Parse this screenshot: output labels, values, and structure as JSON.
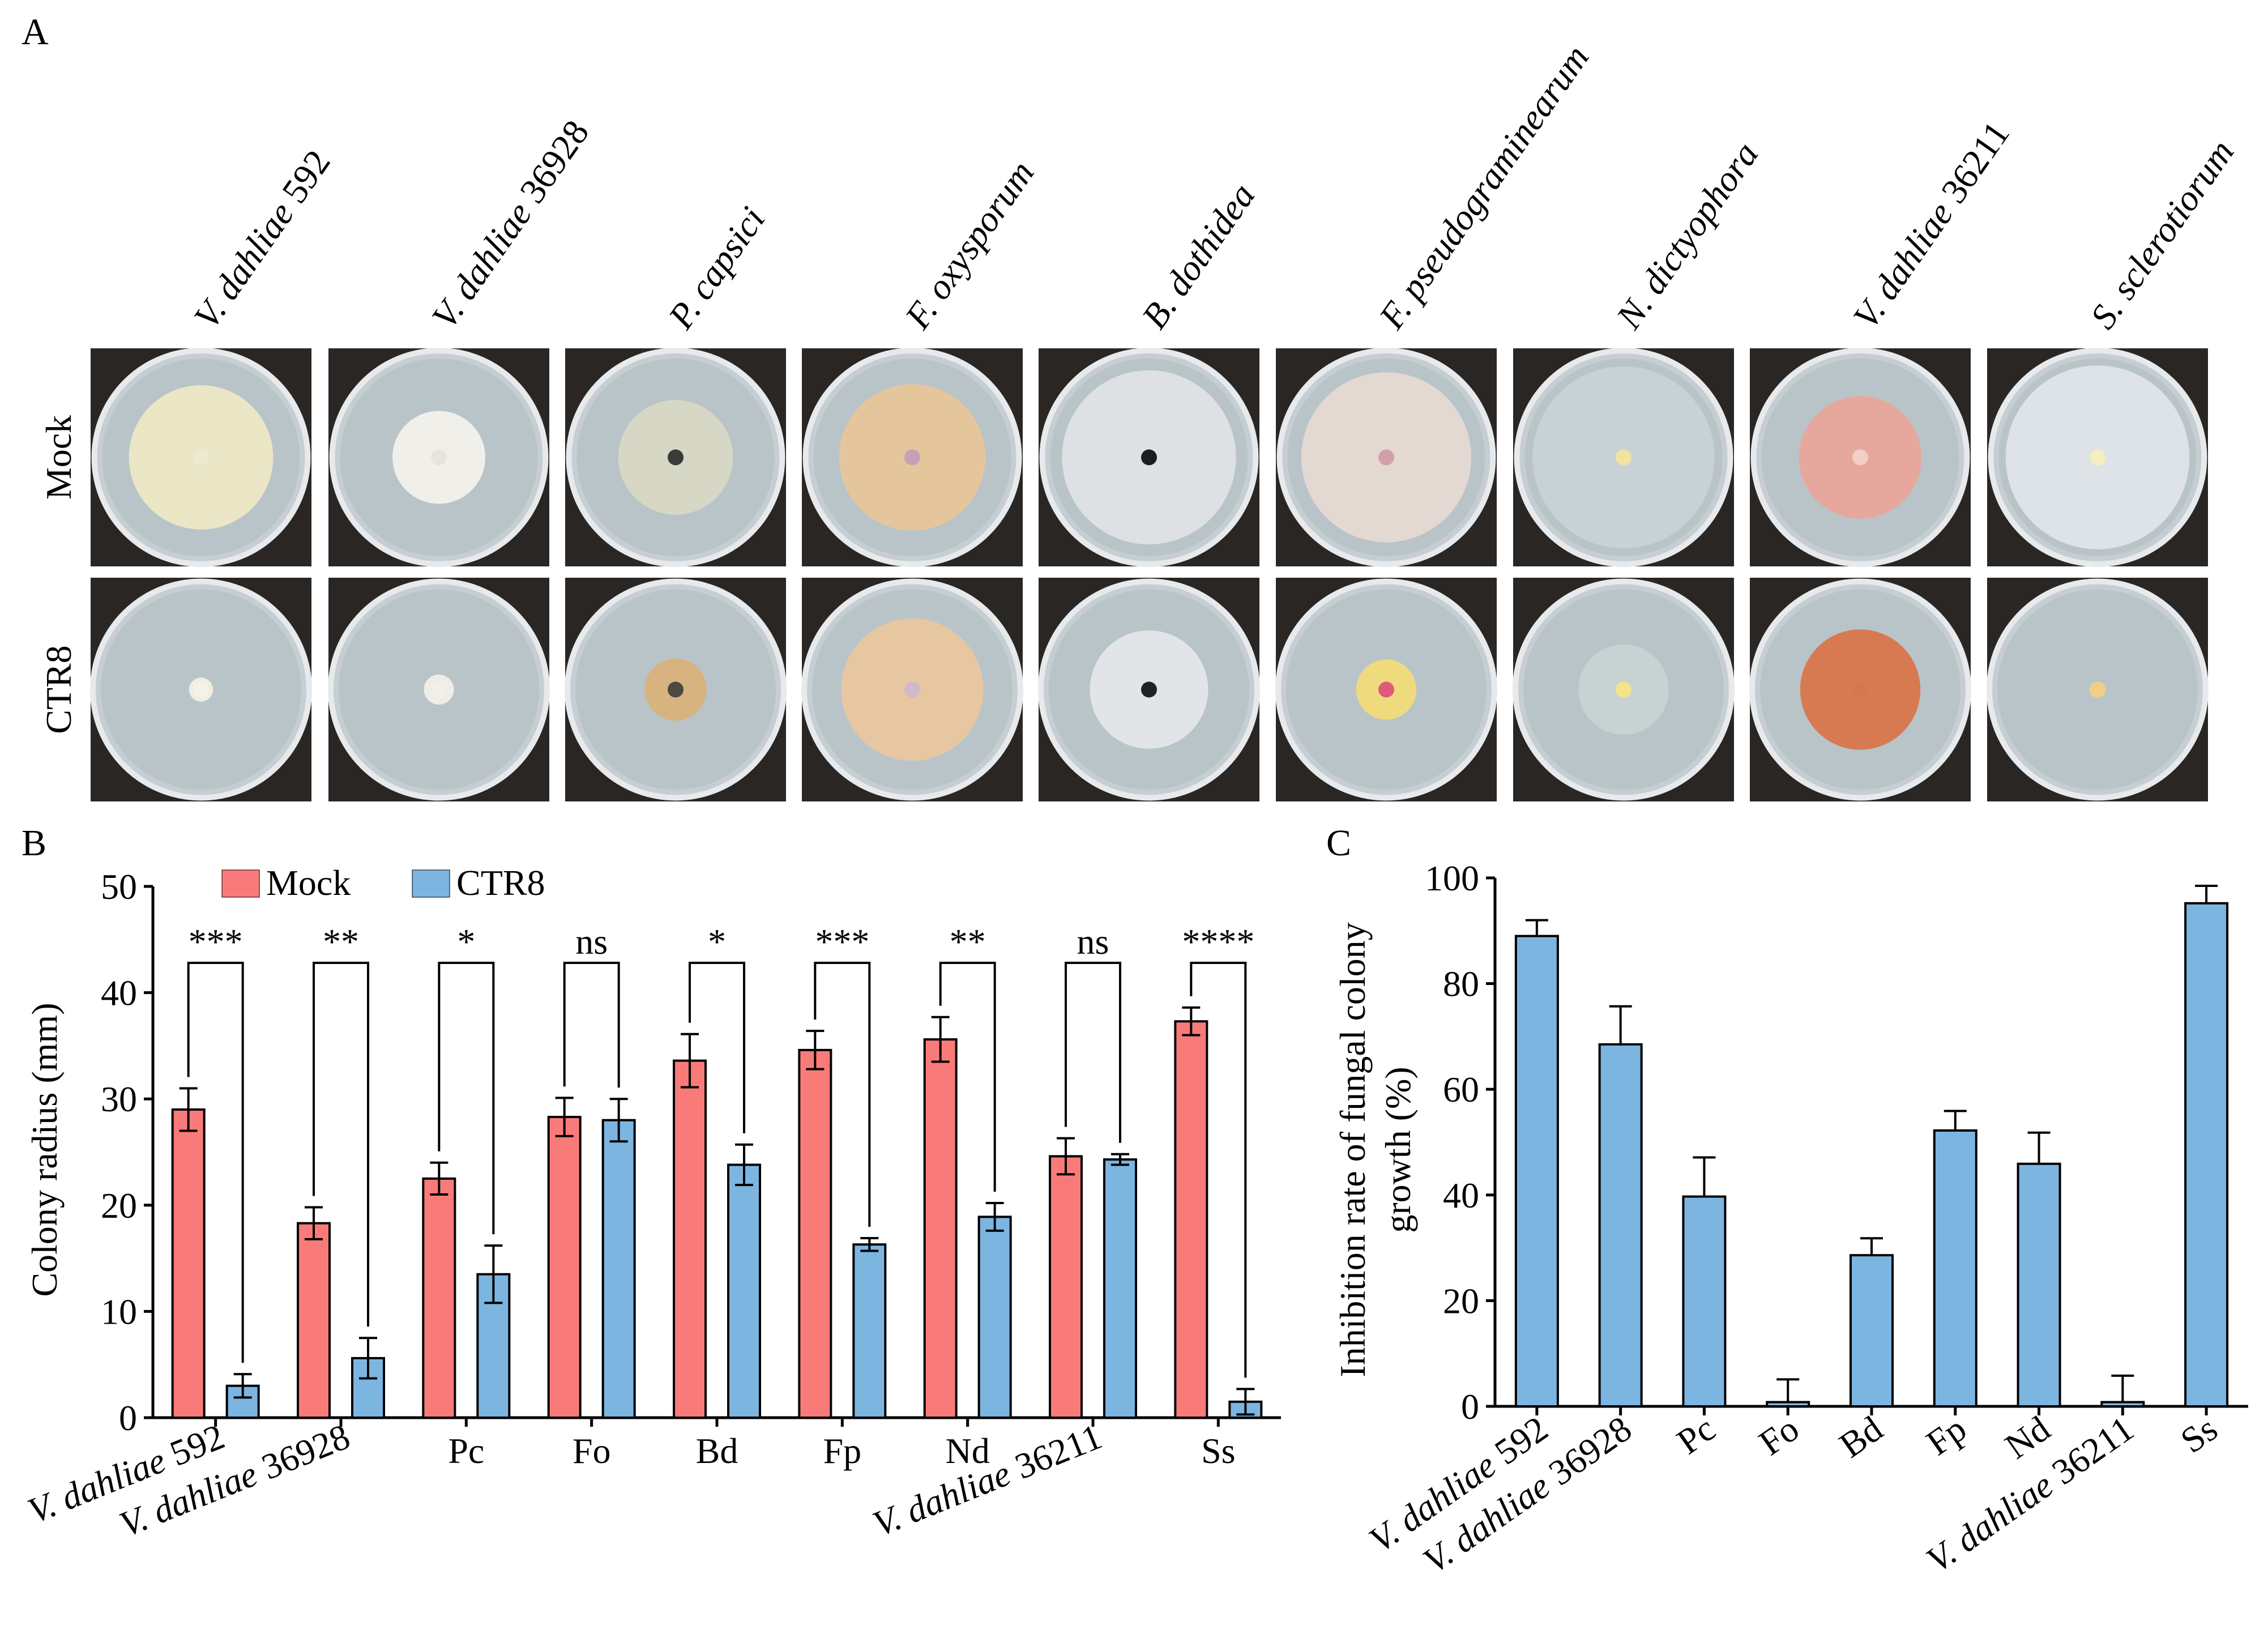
{
  "panel_labels": {
    "a": "A",
    "b": "B",
    "c": "C"
  },
  "photo_panel": {
    "columns": [
      {
        "italic": "V. dahliae",
        "roman": " 592"
      },
      {
        "italic": "V. dahliae",
        "roman": " 36928"
      },
      {
        "italic": "P. capsici",
        "roman": ""
      },
      {
        "italic": "F. oxysporum",
        "roman": ""
      },
      {
        "italic": "B. dothidea",
        "roman": ""
      },
      {
        "italic": "F. pseudograminearum",
        "roman": ""
      },
      {
        "italic": "N. dictyophora",
        "roman": ""
      },
      {
        "italic": "V. dahliae",
        "roman": " 36211"
      },
      {
        "italic": "S. sclerotiorum",
        "roman": ""
      }
    ],
    "rows": [
      "Mock",
      "CTR8"
    ],
    "colony_colors": {
      "Mock": [
        "#ece7c6",
        "#f2f0ea",
        "#d8d7c6",
        "#e7c69a",
        "#dfe2e4",
        "#e6d8d2",
        "#c9d2d6",
        "#e8a79a",
        "#dfe4e8"
      ],
      "CTR8": [
        "#f3efe3",
        "#f1eee8",
        "#d9b27c",
        "#e8c7a0",
        "#e3e6e8",
        "#f1dc7a",
        "#c8d2d2",
        "#d9774c",
        "#f2e4b4"
      ]
    },
    "colony_fraction": {
      "Mock": [
        0.73,
        0.47,
        0.58,
        0.74,
        0.88,
        0.86,
        0.92,
        0.62,
        0.93
      ],
      "CTR8": [
        0.12,
        0.15,
        0.31,
        0.71,
        0.59,
        0.3,
        0.45,
        0.6,
        0.08
      ]
    },
    "center_colors": {
      "Mock": [
        "#ecebd0",
        "#e8e4dc",
        "#3a3a38",
        "#c9a0b8",
        "#1e1e1e",
        "#d4a0a8",
        "#f3e3a0",
        "#f2d0c8",
        "#f5eec2"
      ],
      "CTR8": [
        "#f6f2e6",
        "#f3efe7",
        "#4a4a40",
        "#d2b8cc",
        "#222222",
        "#e05a7a",
        "#f5e38a",
        "#d9774c",
        "#f0cf82"
      ]
    }
  },
  "chart_b": {
    "ylabel": "Colony radius (mm)",
    "legend": [
      "Mock",
      "CTR8"
    ],
    "colors": {
      "Mock": "#f87b7a",
      "CTR8": "#7db5e1"
    }
  },
  "chart_c": {
    "ylabel_line1": "Inhibition rate of  fungal colony",
    "ylabel_line2": "growth (%)",
    "color": "#7db5e1"
  },
  "chart_data": [
    {
      "type": "bar",
      "categories": [
        "V. dahliae 592",
        "V. dahliae 36928",
        "Pc",
        "Fo",
        "Bd",
        "Fp",
        "Nd",
        "V. dahliae 36211",
        "Ss"
      ],
      "series": [
        {
          "name": "Mock",
          "values": [
            29.0,
            18.3,
            22.5,
            28.3,
            33.6,
            34.6,
            35.6,
            24.6,
            37.3
          ],
          "errors": [
            2.0,
            1.5,
            1.5,
            1.8,
            2.5,
            1.8,
            2.1,
            1.7,
            1.3
          ]
        },
        {
          "name": "CTR8",
          "values": [
            3.0,
            5.6,
            13.5,
            28.0,
            23.8,
            16.3,
            18.9,
            24.3,
            1.5
          ],
          "errors": [
            1.1,
            1.9,
            2.7,
            2.0,
            1.9,
            0.6,
            1.3,
            0.5,
            1.2
          ]
        }
      ],
      "significance": [
        "***",
        "**",
        "*",
        "ns",
        "*",
        "***",
        "**",
        "ns",
        "****"
      ],
      "ylabel": "Colony radius (mm)",
      "xlabel": "",
      "ylim": [
        0,
        50
      ],
      "yticks": [
        0,
        10,
        20,
        30,
        40,
        50
      ],
      "legend_position": "top-left",
      "grid": false
    },
    {
      "type": "bar",
      "categories": [
        "V. dahliae 592",
        "V. dahliae 36928",
        "Pc",
        "Fo",
        "Bd",
        "Fp",
        "Nd",
        "V. dahliae 36211",
        "Ss"
      ],
      "series": [
        {
          "values": [
            89,
            68.5,
            39.7,
            0.8,
            28.6,
            52.2,
            45.9,
            0.8,
            95.2
          ],
          "errors": [
            3,
            7.2,
            7.4,
            4.3,
            3.2,
            3.7,
            5.9,
            5.0,
            3.3
          ]
        }
      ],
      "ylabel": "Inhibition rate of  fungal colony growth (%)",
      "xlabel": "",
      "ylim": [
        0,
        100
      ],
      "yticks": [
        0,
        20,
        40,
        60,
        80,
        100
      ],
      "grid": false
    }
  ]
}
